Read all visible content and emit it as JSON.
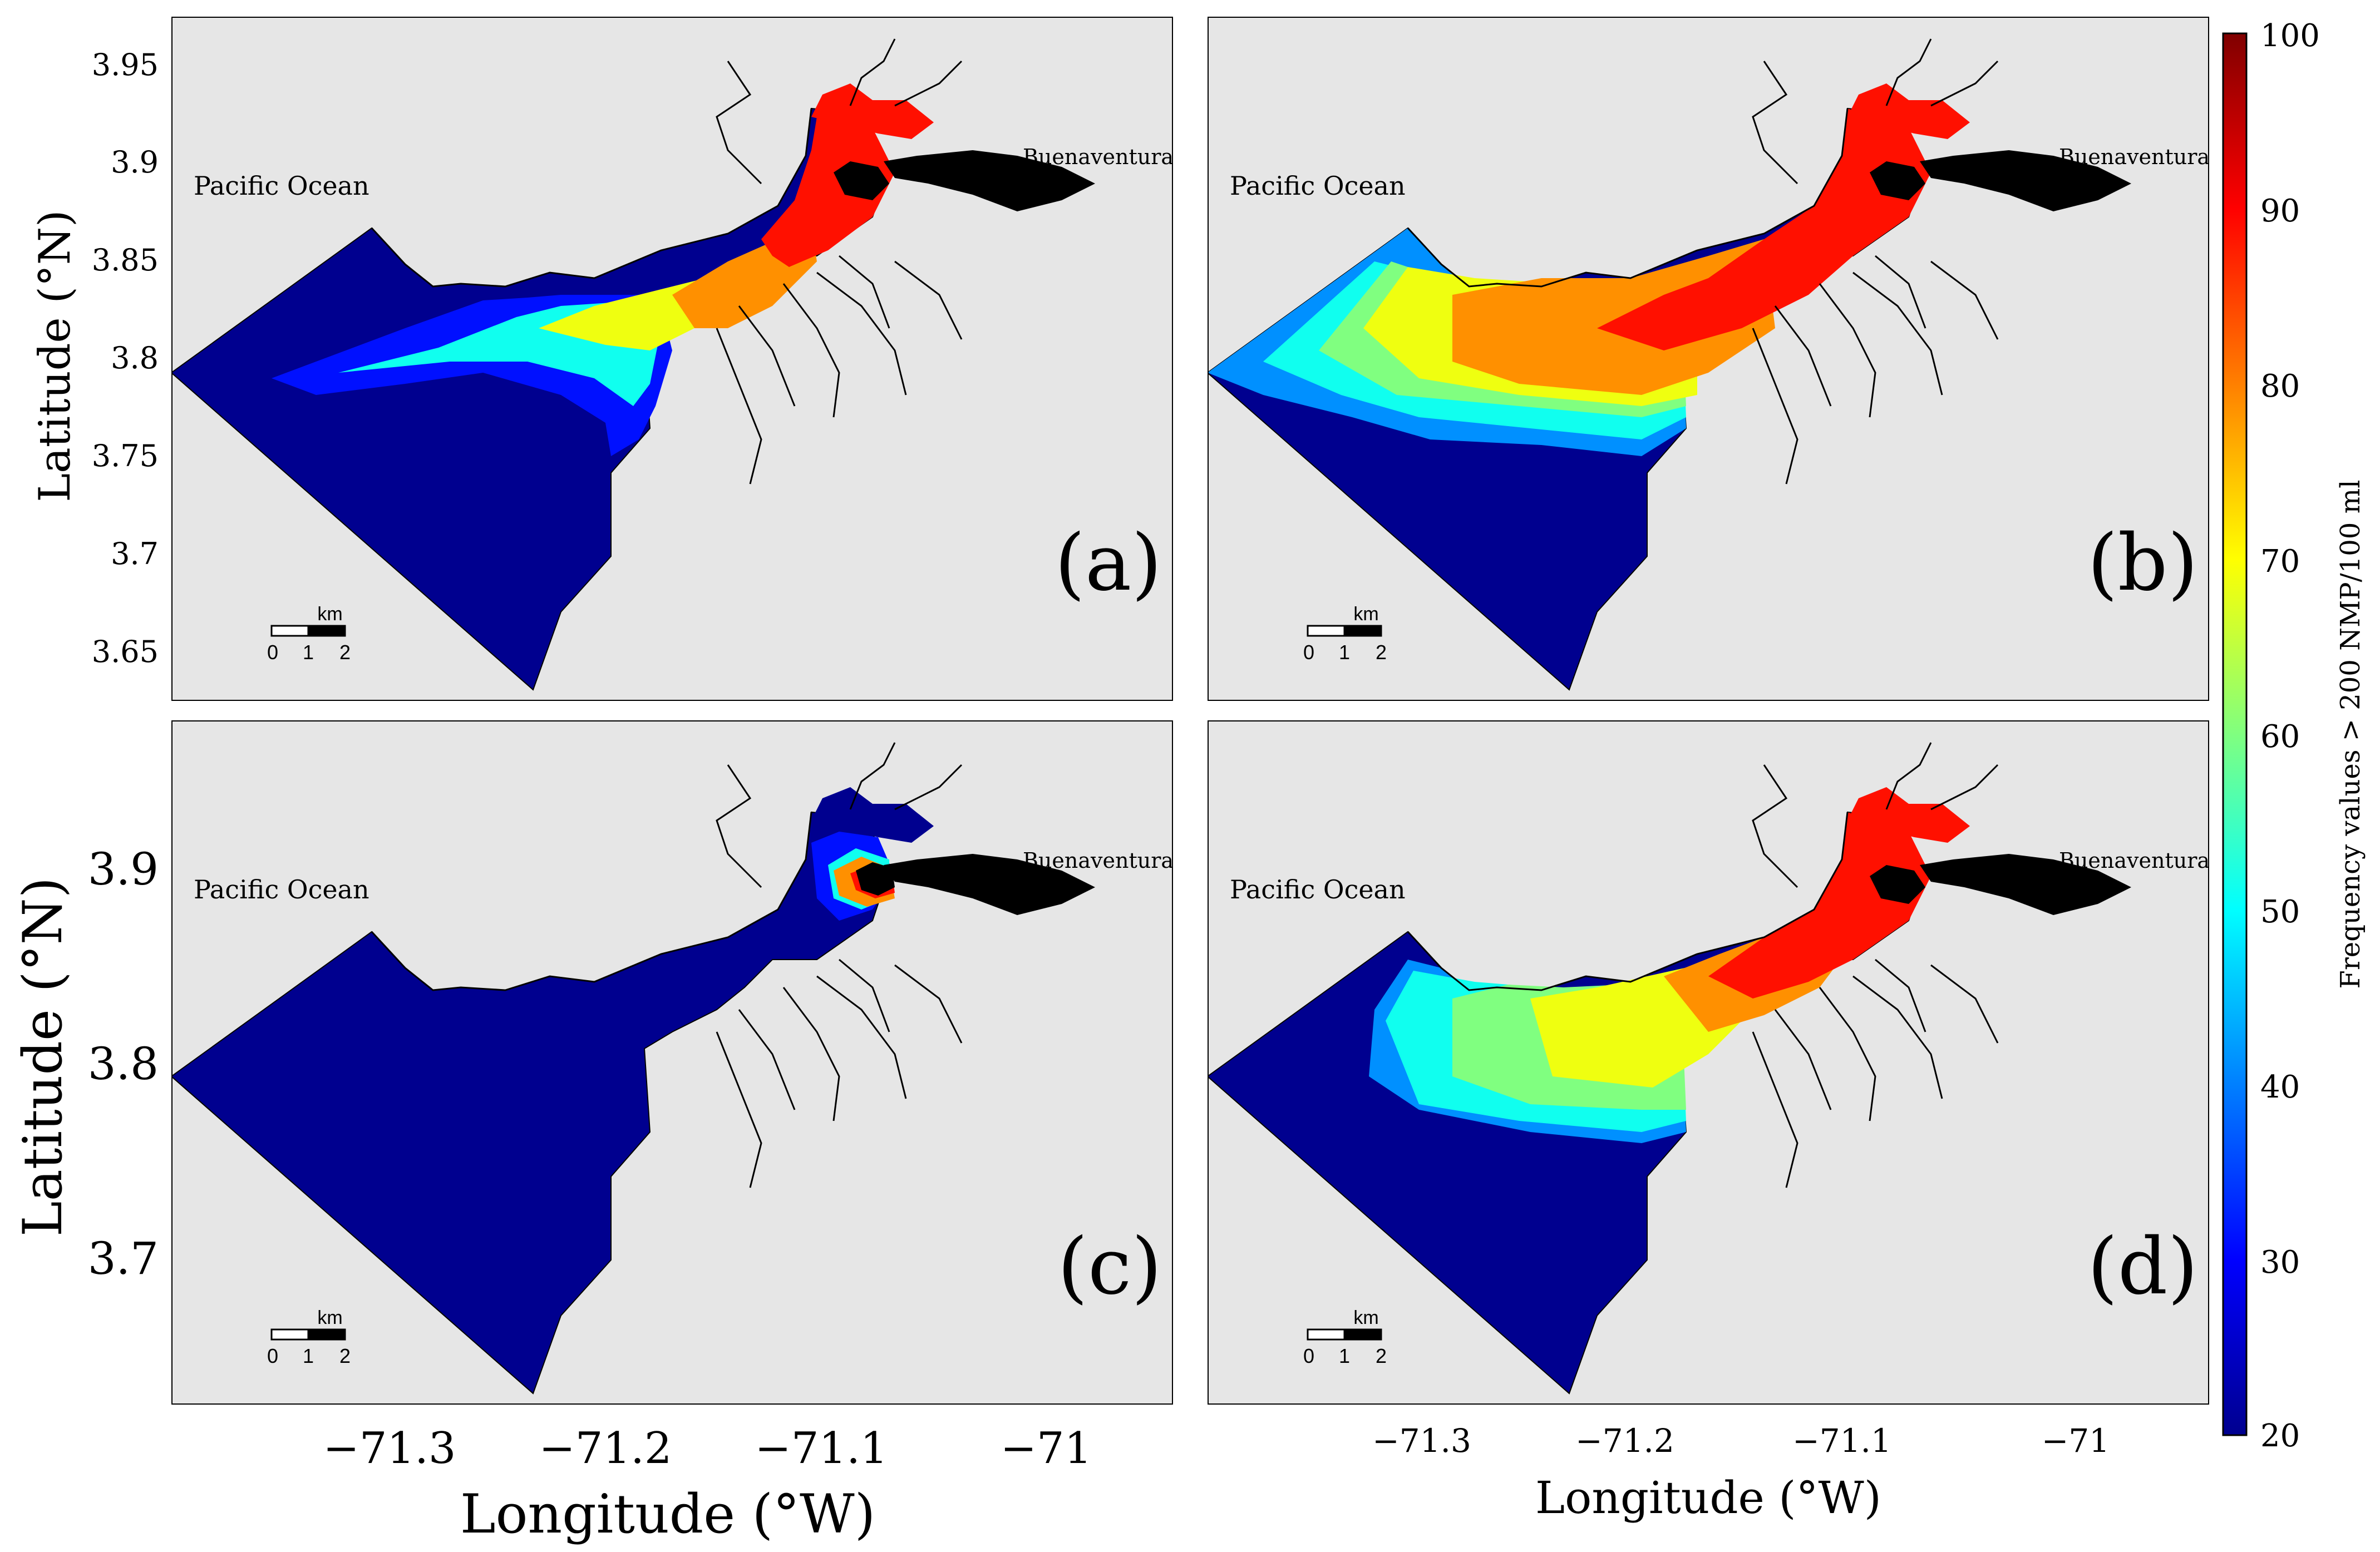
{
  "figure": {
    "colorbar": {
      "label": "Frequency values > 200 NMP/100 ml",
      "ticks": [
        "100",
        "90",
        "80",
        "70",
        "60",
        "50",
        "40",
        "30",
        "20"
      ],
      "min": 20,
      "max": 100,
      "colormap": "jet"
    },
    "axes": {
      "latitude_label": "Latitude (°N)",
      "longitude_label": "Longitude (°W)",
      "top_lat_ticks": [
        "3.95",
        "3.9",
        "3.85",
        "3.8",
        "3.75",
        "3.7",
        "3.65"
      ],
      "bottom_lat_ticks": [
        "3.9",
        "3.8",
        "3.7"
      ],
      "lon_ticks": [
        "−71.3",
        "−71.2",
        "−71.1",
        "−71"
      ]
    },
    "place_labels": {
      "ocean": "Pacific Ocean",
      "city": "Buenaventura"
    },
    "scale_bar": {
      "unit": "km",
      "ticks": [
        "0",
        "1",
        "2"
      ]
    },
    "panels": [
      {
        "id": "a",
        "label": "(a)"
      },
      {
        "id": "b",
        "label": "(b)"
      },
      {
        "id": "c",
        "label": "(c)"
      },
      {
        "id": "d",
        "label": "(d)"
      }
    ],
    "colors": {
      "land": "#e6e6e6",
      "coast_line": "#000000",
      "city": "#000000",
      "c20": "#00008f",
      "c30": "#0010ff",
      "c40": "#0090ff",
      "c50": "#10ffef",
      "c60": "#80ff80",
      "c70": "#efff10",
      "c80": "#ff9000",
      "c90": "#ff1000",
      "c100": "#800000"
    }
  }
}
